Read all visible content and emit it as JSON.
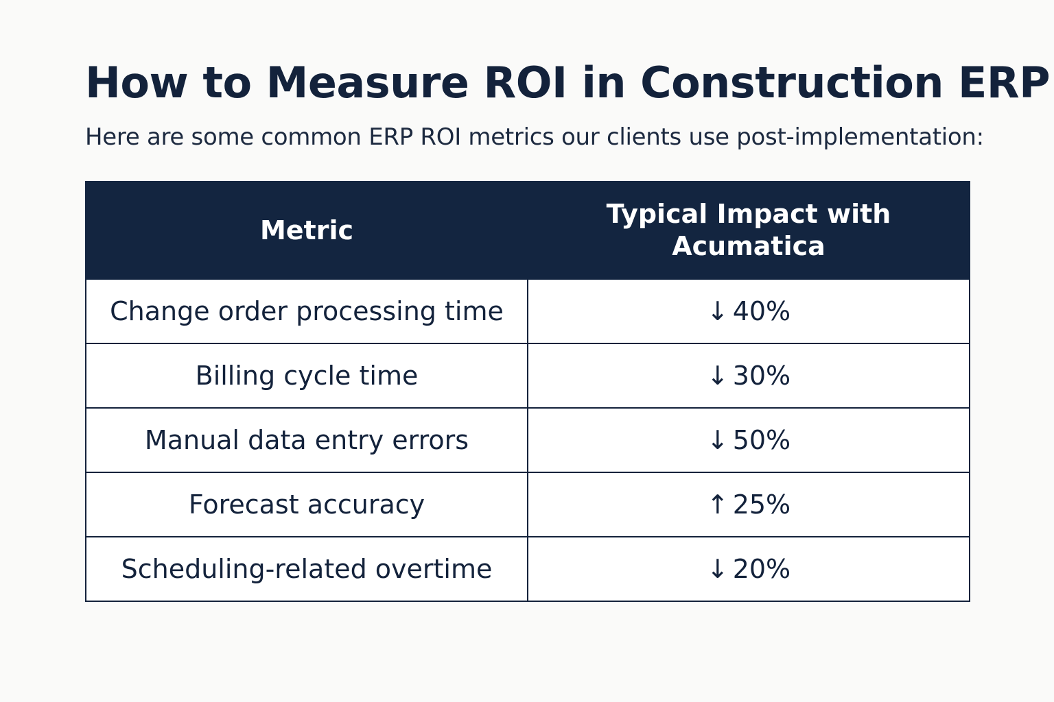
{
  "page": {
    "title": "How to Measure ROI in Construction ERP",
    "subtitle": "Here are some common ERP ROI metrics our clients use post-implementation:"
  },
  "table": {
    "headers": {
      "metric": "Metric",
      "impact": "Typical Impact with Acumatica"
    },
    "rows": [
      {
        "metric": "Change order processing time",
        "arrow": "↓",
        "direction": "down",
        "impact": "40%"
      },
      {
        "metric": "Billing cycle time",
        "arrow": "↓",
        "direction": "down",
        "impact": "30%"
      },
      {
        "metric": "Manual data entry errors",
        "arrow": "↓",
        "direction": "down",
        "impact": "50%"
      },
      {
        "metric": "Forecast accuracy",
        "arrow": "↑",
        "direction": "up",
        "impact": "25%"
      },
      {
        "metric": "Scheduling-related overtime",
        "arrow": "↓",
        "direction": "down",
        "impact": "20%"
      }
    ]
  },
  "colors": {
    "background": "#fafaf9",
    "header_bg": "#132540",
    "text": "#13223b",
    "header_text": "#ffffff"
  }
}
